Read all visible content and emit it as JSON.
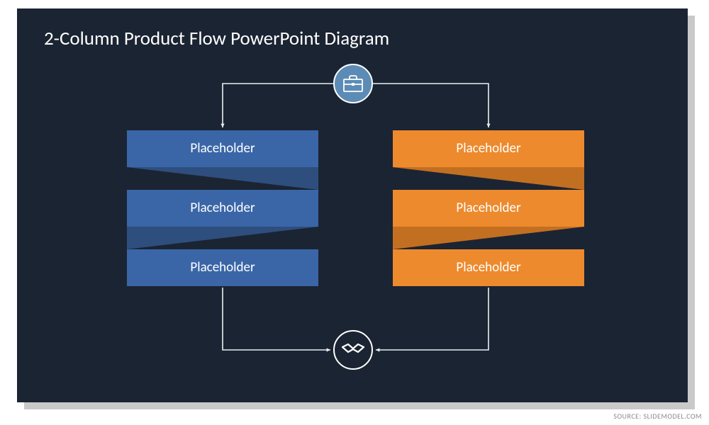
{
  "title": "2-Column Product Flow PowerPoint Diagram",
  "title_fontsize": 27,
  "source": "SOURCE: SLIDEMODEL.COM",
  "slide_bg": "#1b2432",
  "connector_color": "#e9eef5",
  "top_icon": {
    "name": "briefcase-icon",
    "fill": "#5c8cb6",
    "border": "#ffffff",
    "icon_color": "#ffffff"
  },
  "bottom_icon": {
    "name": "handshake-icon",
    "fill": "#1b2432",
    "border": "#ffffff",
    "icon_color": "#ffffff"
  },
  "label_fontsize": 19,
  "ribbon_height": 52,
  "fold_height": 32,
  "columns": [
    {
      "side": "left",
      "face_color": "#3a66a8",
      "fold_color": "#2e4e7d",
      "labels": [
        "Placeholder",
        "Placeholder",
        "Placeholder"
      ]
    },
    {
      "side": "right",
      "face_color": "#ed8a2d",
      "fold_color": "#c26f22",
      "labels": [
        "Placeholder",
        "Placeholder",
        "Placeholder"
      ]
    }
  ]
}
